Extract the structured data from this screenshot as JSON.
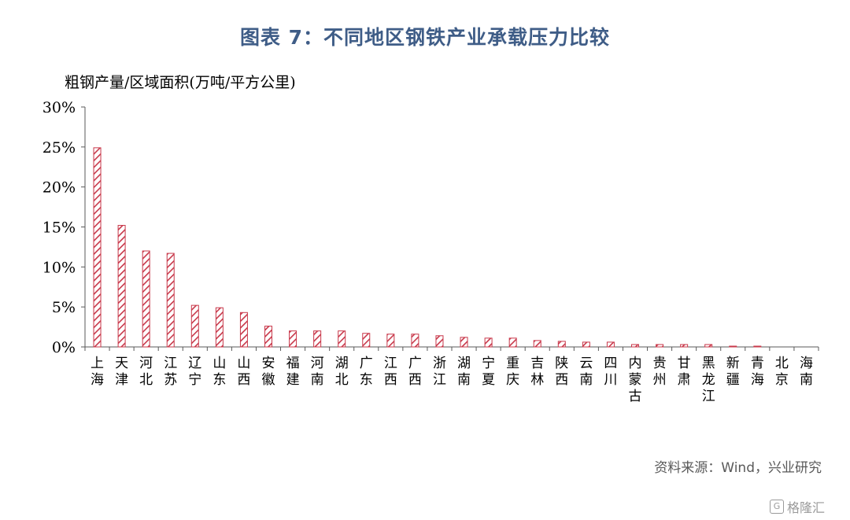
{
  "title": "图表 7：不同地区钢铁产业承载压力比较",
  "source": "资料来源：Wind，兴业研究",
  "watermark": "格隆汇",
  "watermark_icon": "G",
  "colors": {
    "bar": "#c8384a",
    "title": "#3f5d87",
    "axis": "#595959"
  },
  "chart_data": {
    "type": "bar",
    "ylabel": "粗钢产量/区域面积(万吨/平方公里)",
    "ylim": [
      0,
      30
    ],
    "yticks": [
      0,
      5,
      10,
      15,
      20,
      25,
      30
    ],
    "ytick_labels": [
      "0%",
      "5%",
      "10%",
      "15%",
      "20%",
      "25%",
      "30%"
    ],
    "categories": [
      "上海",
      "天津",
      "河北",
      "江苏",
      "辽宁",
      "山东",
      "山西",
      "安徽",
      "福建",
      "河南",
      "湖北",
      "广东",
      "江西",
      "广西",
      "浙江",
      "湖南",
      "宁夏",
      "重庆",
      "吉林",
      "陕西",
      "云南",
      "四川",
      "内蒙古",
      "贵州",
      "甘肃",
      "黑龙江",
      "新疆",
      "青海",
      "北京",
      "海南"
    ],
    "values": [
      24.9,
      15.2,
      12.0,
      11.7,
      5.2,
      4.9,
      4.3,
      2.6,
      2.0,
      2.0,
      2.0,
      1.7,
      1.6,
      1.6,
      1.4,
      1.2,
      1.1,
      1.1,
      0.8,
      0.7,
      0.6,
      0.6,
      0.3,
      0.3,
      0.3,
      0.3,
      0.1,
      0.1,
      0.0,
      0.0
    ],
    "grid": false,
    "bar_pattern": "diagonal-hatch"
  }
}
